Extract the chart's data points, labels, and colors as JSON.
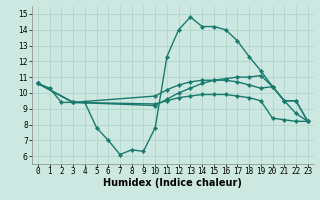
{
  "xlabel": "Humidex (Indice chaleur)",
  "ylabel": "",
  "xlim": [
    -0.5,
    23.5
  ],
  "ylim": [
    5.5,
    15.5
  ],
  "xticks": [
    0,
    1,
    2,
    3,
    4,
    5,
    6,
    7,
    8,
    9,
    10,
    11,
    12,
    13,
    14,
    15,
    16,
    17,
    18,
    19,
    20,
    21,
    22,
    23
  ],
  "yticks": [
    6,
    7,
    8,
    9,
    10,
    11,
    12,
    13,
    14,
    15
  ],
  "bg_color": "#cce8e0",
  "line_color": "#1a7a6e",
  "series": [
    {
      "x": [
        0,
        1,
        2,
        3,
        4,
        5,
        6,
        7,
        8,
        9,
        10,
        11,
        12,
        13,
        14,
        15,
        16,
        17,
        18,
        19,
        20,
        21,
        22,
        23
      ],
      "y": [
        10.6,
        10.3,
        9.4,
        9.4,
        9.4,
        7.8,
        7.0,
        6.1,
        6.4,
        6.3,
        7.8,
        12.3,
        14.0,
        14.8,
        14.2,
        14.2,
        14.0,
        13.3,
        12.3,
        11.4,
        10.4,
        9.5,
        8.7,
        8.2
      ],
      "marker": "D",
      "markersize": 2.2,
      "linewidth": 1.0
    },
    {
      "x": [
        0,
        3,
        10,
        11,
        12,
        13,
        14,
        15,
        16,
        17,
        18,
        19,
        20,
        21,
        22,
        23
      ],
      "y": [
        10.6,
        9.4,
        9.2,
        9.6,
        10.0,
        10.3,
        10.6,
        10.8,
        10.9,
        11.0,
        11.0,
        11.1,
        10.4,
        9.5,
        9.5,
        8.2
      ],
      "marker": "D",
      "markersize": 2.2,
      "linewidth": 1.0
    },
    {
      "x": [
        0,
        3,
        10,
        11,
        12,
        13,
        14,
        15,
        16,
        17,
        18,
        19,
        20,
        21,
        22,
        23
      ],
      "y": [
        10.6,
        9.4,
        9.8,
        10.2,
        10.5,
        10.7,
        10.8,
        10.8,
        10.8,
        10.7,
        10.5,
        10.3,
        10.4,
        9.5,
        9.5,
        8.2
      ],
      "marker": "D",
      "markersize": 2.2,
      "linewidth": 1.0
    },
    {
      "x": [
        0,
        3,
        10,
        11,
        12,
        13,
        14,
        15,
        16,
        17,
        18,
        19,
        20,
        21,
        22,
        23
      ],
      "y": [
        10.6,
        9.4,
        9.3,
        9.5,
        9.7,
        9.8,
        9.9,
        9.9,
        9.9,
        9.8,
        9.7,
        9.5,
        8.4,
        8.3,
        8.2,
        8.2
      ],
      "marker": "D",
      "markersize": 2.2,
      "linewidth": 1.0
    }
  ],
  "grid_color": "#aad4c8",
  "tick_fontsize": 5.5,
  "xlabel_fontsize": 7,
  "xlabel_fontweight": "bold"
}
